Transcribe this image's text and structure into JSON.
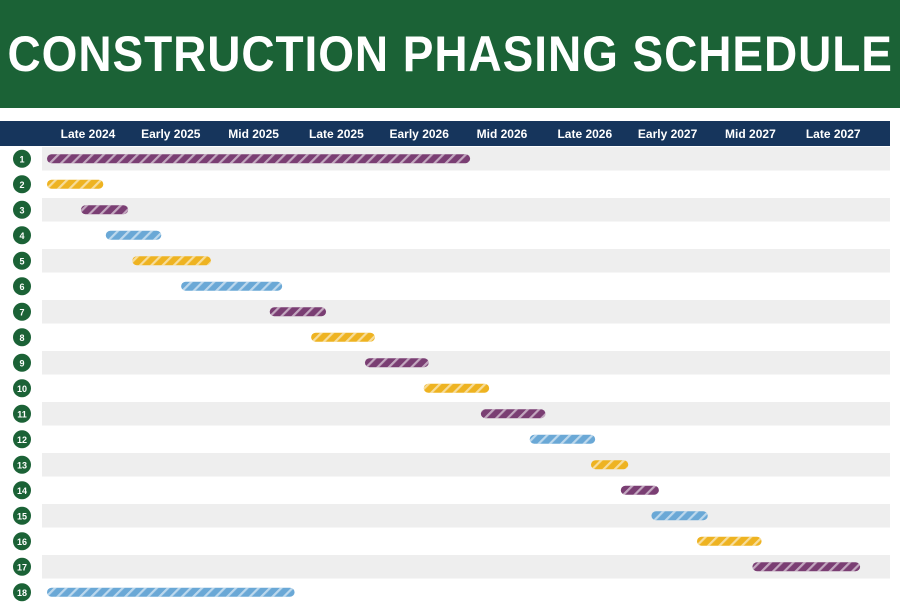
{
  "title": "CONSTRUCTION PHASING SCHEDULE",
  "colors": {
    "banner": "#1b6236",
    "header": "#16355c",
    "row_alt": "#eeeeee",
    "badge": "#1b6236",
    "purple": "#7a3e73",
    "yellow": "#eeb321",
    "blue": "#6aa8d6"
  },
  "chart_data": {
    "type": "gantt",
    "x_axis": {
      "labels": [
        "Late 2024",
        "Early 2025",
        "Mid 2025",
        "Late 2025",
        "Early 2026",
        "Mid 2026",
        "Late 2026",
        "Early 2027",
        "Mid 2027",
        "Late 2027"
      ],
      "position": "top"
    },
    "grid": false,
    "legend": "none",
    "tasks": [
      {
        "label": "1",
        "start": 0.0,
        "end": 5.11,
        "color": "purple"
      },
      {
        "label": "2",
        "start": 0.0,
        "end": 0.68,
        "color": "yellow"
      },
      {
        "label": "3",
        "start": 0.41,
        "end": 0.98,
        "color": "purple"
      },
      {
        "label": "4",
        "start": 0.71,
        "end": 1.38,
        "color": "blue"
      },
      {
        "label": "5",
        "start": 1.03,
        "end": 1.98,
        "color": "yellow"
      },
      {
        "label": "6",
        "start": 1.62,
        "end": 2.84,
        "color": "blue"
      },
      {
        "label": "7",
        "start": 2.69,
        "end": 3.37,
        "color": "purple"
      },
      {
        "label": "8",
        "start": 3.19,
        "end": 3.96,
        "color": "yellow"
      },
      {
        "label": "9",
        "start": 3.84,
        "end": 4.61,
        "color": "purple"
      },
      {
        "label": "10",
        "start": 4.55,
        "end": 5.34,
        "color": "yellow"
      },
      {
        "label": "11",
        "start": 5.24,
        "end": 6.02,
        "color": "purple"
      },
      {
        "label": "12",
        "start": 5.83,
        "end": 6.62,
        "color": "blue"
      },
      {
        "label": "13",
        "start": 6.57,
        "end": 7.02,
        "color": "yellow"
      },
      {
        "label": "14",
        "start": 6.93,
        "end": 7.39,
        "color": "purple"
      },
      {
        "label": "15",
        "start": 7.3,
        "end": 7.98,
        "color": "blue"
      },
      {
        "label": "16",
        "start": 7.85,
        "end": 8.63,
        "color": "yellow"
      },
      {
        "label": "17",
        "start": 8.52,
        "end": 9.82,
        "color": "purple"
      },
      {
        "label": "18",
        "start": 0.0,
        "end": 2.99,
        "color": "blue"
      }
    ]
  }
}
